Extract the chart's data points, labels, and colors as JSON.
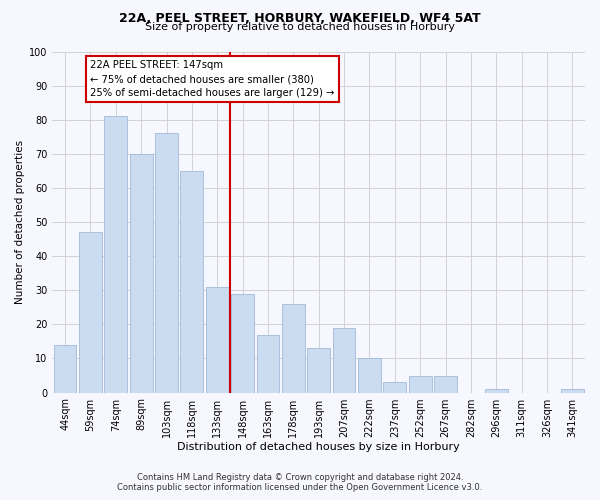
{
  "title": "22A, PEEL STREET, HORBURY, WAKEFIELD, WF4 5AT",
  "subtitle": "Size of property relative to detached houses in Horbury",
  "xlabel": "Distribution of detached houses by size in Horbury",
  "ylabel": "Number of detached properties",
  "bar_labels": [
    "44sqm",
    "59sqm",
    "74sqm",
    "89sqm",
    "103sqm",
    "118sqm",
    "133sqm",
    "148sqm",
    "163sqm",
    "178sqm",
    "193sqm",
    "207sqm",
    "222sqm",
    "237sqm",
    "252sqm",
    "267sqm",
    "282sqm",
    "296sqm",
    "311sqm",
    "326sqm",
    "341sqm"
  ],
  "bar_values": [
    14,
    47,
    81,
    70,
    76,
    65,
    31,
    29,
    17,
    26,
    13,
    19,
    10,
    3,
    5,
    5,
    0,
    1,
    0,
    0,
    1
  ],
  "bar_color": "#ccdcf0",
  "bar_edge_color": "#a0bbda",
  "vline_color": "#cc0000",
  "vline_x": 7.5,
  "annotation_title": "22A PEEL STREET: 147sqm",
  "annotation_line1": "← 75% of detached houses are smaller (380)",
  "annotation_line2": "25% of semi-detached houses are larger (129) →",
  "annotation_box_color": "#ffffff",
  "annotation_box_edge": "#cc0000",
  "ylim": [
    0,
    100
  ],
  "yticks": [
    0,
    10,
    20,
    30,
    40,
    50,
    60,
    70,
    80,
    90,
    100
  ],
  "grid_color": "#cccccc",
  "footer_line1": "Contains HM Land Registry data © Crown copyright and database right 2024.",
  "footer_line2": "Contains public sector information licensed under the Open Government Licence v3.0.",
  "bg_color": "#f7f7ff",
  "title_fontsize": 9,
  "subtitle_fontsize": 8,
  "ylabel_fontsize": 7.5,
  "xlabel_fontsize": 8,
  "tick_fontsize": 7,
  "footer_fontsize": 6
}
